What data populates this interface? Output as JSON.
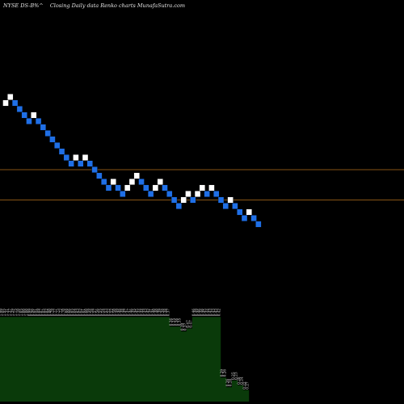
{
  "header": {
    "symbol": "NYSE DS-B%^",
    "chart_kind": "Closing Daily data  Renko  charts MunafaSutra.com"
  },
  "colors": {
    "background": "#000000",
    "up_brick": "#ffffff",
    "down_brick": "#1f6fe6",
    "reference_line": "#b5701c",
    "volume_area": "#0a3a0a"
  },
  "chart_data": {
    "type": "renko",
    "price_range": [
      0,
      100
    ],
    "volume_range": [
      0,
      1
    ],
    "reference_lines": [
      58.0,
      50.5
    ],
    "bricks": [
      {
        "y": 74.5,
        "dir": "up"
      },
      {
        "y": 76.0,
        "dir": "up"
      },
      {
        "y": 74.5,
        "dir": "down"
      },
      {
        "y": 73.0,
        "dir": "down"
      },
      {
        "y": 71.5,
        "dir": "down"
      },
      {
        "y": 70.0,
        "dir": "down"
      },
      {
        "y": 71.5,
        "dir": "up"
      },
      {
        "y": 70.0,
        "dir": "down"
      },
      {
        "y": 68.5,
        "dir": "down"
      },
      {
        "y": 67.0,
        "dir": "down"
      },
      {
        "y": 65.5,
        "dir": "down"
      },
      {
        "y": 64.0,
        "dir": "down"
      },
      {
        "y": 62.5,
        "dir": "down"
      },
      {
        "y": 61.0,
        "dir": "down"
      },
      {
        "y": 59.5,
        "dir": "down"
      },
      {
        "y": 61.0,
        "dir": "up"
      },
      {
        "y": 59.5,
        "dir": "down"
      },
      {
        "y": 61.0,
        "dir": "up"
      },
      {
        "y": 59.5,
        "dir": "down"
      },
      {
        "y": 58.0,
        "dir": "down"
      },
      {
        "y": 56.5,
        "dir": "down"
      },
      {
        "y": 55.0,
        "dir": "down"
      },
      {
        "y": 53.5,
        "dir": "down"
      },
      {
        "y": 55.0,
        "dir": "up"
      },
      {
        "y": 53.5,
        "dir": "down"
      },
      {
        "y": 52.0,
        "dir": "down"
      },
      {
        "y": 53.5,
        "dir": "up"
      },
      {
        "y": 55.0,
        "dir": "up"
      },
      {
        "y": 56.5,
        "dir": "up"
      },
      {
        "y": 55.0,
        "dir": "down"
      },
      {
        "y": 53.5,
        "dir": "down"
      },
      {
        "y": 52.0,
        "dir": "down"
      },
      {
        "y": 53.5,
        "dir": "up"
      },
      {
        "y": 55.0,
        "dir": "up"
      },
      {
        "y": 53.5,
        "dir": "down"
      },
      {
        "y": 52.0,
        "dir": "down"
      },
      {
        "y": 50.5,
        "dir": "down"
      },
      {
        "y": 49.0,
        "dir": "down"
      },
      {
        "y": 50.5,
        "dir": "up"
      },
      {
        "y": 52.0,
        "dir": "up"
      },
      {
        "y": 50.5,
        "dir": "down"
      },
      {
        "y": 52.0,
        "dir": "up"
      },
      {
        "y": 53.5,
        "dir": "up"
      },
      {
        "y": 52.0,
        "dir": "down"
      },
      {
        "y": 53.5,
        "dir": "up"
      },
      {
        "y": 52.0,
        "dir": "down"
      },
      {
        "y": 50.5,
        "dir": "down"
      },
      {
        "y": 49.0,
        "dir": "down"
      },
      {
        "y": 50.5,
        "dir": "up"
      },
      {
        "y": 49.0,
        "dir": "down"
      },
      {
        "y": 47.5,
        "dir": "down"
      },
      {
        "y": 46.0,
        "dir": "down"
      },
      {
        "y": 47.5,
        "dir": "up"
      },
      {
        "y": 46.0,
        "dir": "down"
      },
      {
        "y": 44.5,
        "dir": "down"
      }
    ],
    "volume": [
      {
        "v": 0.88,
        "label": "1.99"
      },
      {
        "v": 0.88,
        "label": "1.95"
      },
      {
        "v": 0.88,
        "label": "1.31"
      },
      {
        "v": 0.88,
        "label": "1.37"
      },
      {
        "v": 0.88,
        "label": "1.29"
      },
      {
        "v": 0.88,
        "label": "1.15"
      },
      {
        "v": 0.88,
        "label": "1.10"
      },
      {
        "v": 0.88,
        "label": "1.05"
      },
      {
        "v": 0.88,
        "label": "1.00"
      },
      {
        "v": 0.88,
        "label": "1.00"
      },
      {
        "v": 0.88,
        "label": "0.99"
      },
      {
        "v": 0.88,
        "label": "0.96"
      },
      {
        "v": 0.88,
        "label": "0.91"
      },
      {
        "v": 0.88,
        "label": "0.89"
      },
      {
        "v": 0.88,
        "label": "0.87"
      },
      {
        "v": 0.88,
        "label": "0.85"
      },
      {
        "v": 0.88,
        "label": "0.82"
      },
      {
        "v": 0.88,
        "label": "0.80"
      },
      {
        "v": 0.88,
        "label": "0.79"
      },
      {
        "v": 0.88,
        "label": "0.77"
      },
      {
        "v": 0.88,
        "label": "0.75"
      },
      {
        "v": 0.88,
        "label": "0.72"
      },
      {
        "v": 0.88,
        "label": "0.70"
      },
      {
        "v": 0.88,
        "label": "0.68"
      },
      {
        "v": 0.88,
        "label": "0.66"
      },
      {
        "v": 0.88,
        "label": "0.65"
      },
      {
        "v": 0.88,
        "label": "0.64"
      },
      {
        "v": 0.88,
        "label": "0.63"
      },
      {
        "v": 0.88,
        "label": "0.62"
      },
      {
        "v": 0.88,
        "label": "0.61"
      },
      {
        "v": 0.88,
        "label": "0.60"
      },
      {
        "v": 0.88,
        "label": "0.59"
      },
      {
        "v": 0.88,
        "label": "0.58"
      },
      {
        "v": 0.88,
        "label": "0.57"
      },
      {
        "v": 0.88,
        "label": "0.56"
      },
      {
        "v": 0.88,
        "label": "0.55"
      },
      {
        "v": 0.88,
        "label": "0.54"
      },
      {
        "v": 0.88,
        "label": "0.53"
      },
      {
        "v": 0.88,
        "label": "0.52"
      },
      {
        "v": 0.88,
        "label": "0.52"
      },
      {
        "v": 0.88,
        "label": "0.50"
      },
      {
        "v": 0.88,
        "label": "0.49"
      },
      {
        "v": 0.88,
        "label": "0.48"
      },
      {
        "v": 0.88,
        "label": "0.48"
      },
      {
        "v": 0.88,
        "label": "0.47"
      },
      {
        "v": 0.88,
        "label": "0.47"
      },
      {
        "v": 0.88,
        "label": "0.46"
      },
      {
        "v": 0.88,
        "label": "0.45"
      },
      {
        "v": 0.88,
        "label": "0.45"
      },
      {
        "v": 0.88,
        "label": "0.44"
      },
      {
        "v": 0.88,
        "label": "0.44"
      },
      {
        "v": 0.88,
        "label": "0.43"
      },
      {
        "v": 0.88,
        "label": "0.42"
      },
      {
        "v": 0.88,
        "label": "0.41"
      },
      {
        "v": 0.88,
        "label": "0.40"
      },
      {
        "v": 0.88,
        "label": "0.40"
      },
      {
        "v": 0.88,
        "label": "0.39"
      },
      {
        "v": 0.88,
        "label": "0.38"
      },
      {
        "v": 0.88,
        "label": "0.38"
      },
      {
        "v": 0.88,
        "label": "0.37"
      },
      {
        "v": 0.78,
        "label": "0.36"
      },
      {
        "v": 0.78,
        "label": "0.35"
      },
      {
        "v": 0.78,
        "label": "0.36"
      },
      {
        "v": 0.78,
        "label": "0.35"
      },
      {
        "v": 0.73,
        "label": "0.39"
      },
      {
        "v": 0.73,
        "label": "0.37"
      },
      {
        "v": 0.76,
        "label": "0.47"
      },
      {
        "v": 0.76,
        "label": "0.47"
      },
      {
        "v": 0.88,
        "label": "0.46"
      },
      {
        "v": 0.88,
        "label": "0.49"
      },
      {
        "v": 0.88,
        "label": "0.46"
      },
      {
        "v": 0.88,
        "label": "0.46"
      },
      {
        "v": 0.88,
        "label": "0.45"
      },
      {
        "v": 0.88,
        "label": "0.44"
      },
      {
        "v": 0.88,
        "label": "0.43"
      },
      {
        "v": 0.88,
        "label": "0.43"
      },
      {
        "v": 0.88,
        "label": "0.43"
      },
      {
        "v": 0.88,
        "label": "0.42"
      },
      {
        "v": 0.25,
        "label": "0.29"
      },
      {
        "v": 0.25,
        "label": "0.26"
      },
      {
        "v": 0.15,
        "label": "0.26"
      },
      {
        "v": 0.15,
        "label": "0.28"
      },
      {
        "v": 0.22,
        "label": "0.25"
      },
      {
        "v": 0.22,
        "label": "0.23"
      },
      {
        "v": 0.17,
        "label": "0.28"
      },
      {
        "v": 0.17,
        "label": "0.24"
      },
      {
        "v": 0.12,
        "label": "0.22"
      },
      {
        "v": 0.12,
        "label": "0.27"
      }
    ]
  }
}
